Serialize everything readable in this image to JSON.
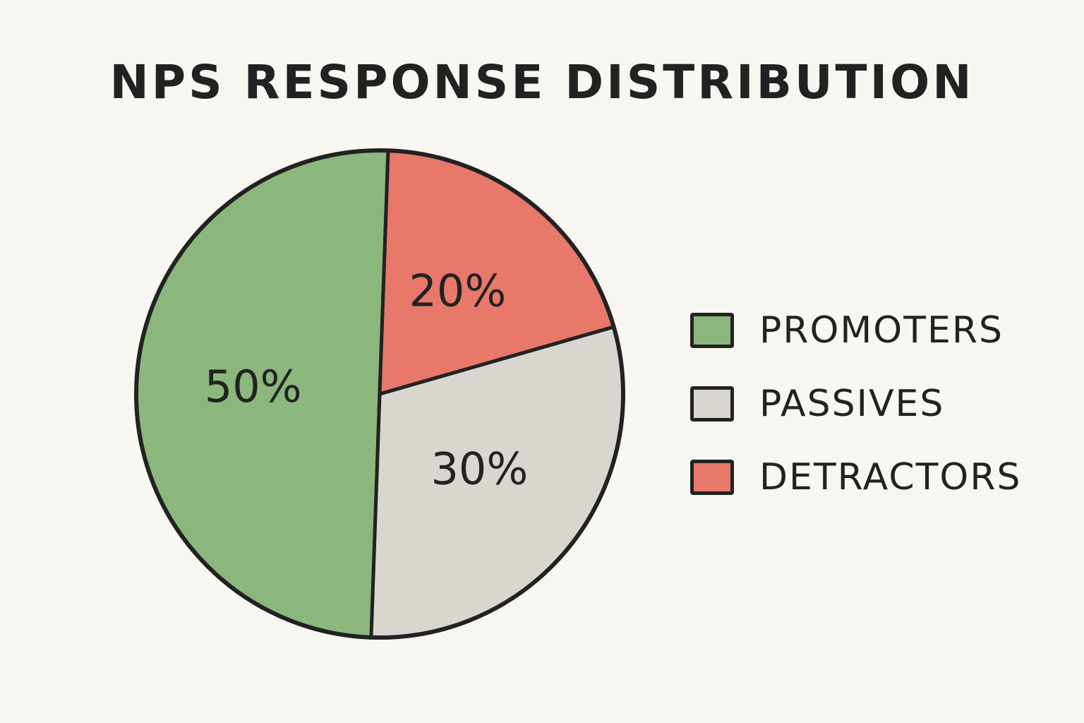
{
  "chart_data": {
    "type": "pie",
    "title": "NPS RESPONSE DISTRIBUTION",
    "categories": [
      "PROMOTERS",
      "PASSIVES",
      "DETRACTORS"
    ],
    "values": [
      50,
      30,
      20
    ],
    "unit": "%",
    "data_labels": [
      "50%",
      "30%",
      "20%"
    ],
    "colors": [
      "#8bb77c",
      "#d9d6d0",
      "#e8786a"
    ],
    "legend": {
      "placement": "right",
      "entries": [
        "PROMOTERS",
        "PASSIVES",
        "DETRACTORS"
      ]
    }
  }
}
